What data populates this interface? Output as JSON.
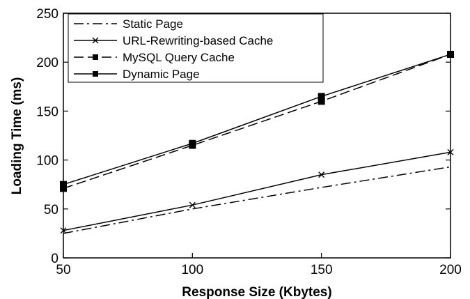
{
  "chart_data": {
    "type": "line",
    "title": "",
    "xlabel": "Response Size (Kbytes)",
    "ylabel": "Loading Time (ms)",
    "x": [
      50,
      100,
      150,
      200
    ],
    "xticks": [
      "50",
      "100",
      "150",
      "200"
    ],
    "yticks": [
      "0",
      "50",
      "100",
      "150",
      "200",
      "250"
    ],
    "xlim": [
      50,
      200
    ],
    "ylim": [
      0,
      250
    ],
    "grid": false,
    "legend_position": "top-left",
    "series": [
      {
        "name": "Static Page",
        "values": [
          25,
          50,
          72,
          93
        ],
        "style": "dash-dot",
        "marker": "none",
        "color": "#000000"
      },
      {
        "name": "URL-Rewriting-based Cache",
        "values": [
          28,
          54,
          85,
          108
        ],
        "style": "solid",
        "marker": "x",
        "color": "#000000"
      },
      {
        "name": "MySQL Query Cache",
        "values": [
          71,
          115,
          160,
          208
        ],
        "style": "dashed",
        "marker": "square",
        "color": "#000000"
      },
      {
        "name": "Dynamic Page",
        "values": [
          75,
          117,
          165,
          208
        ],
        "style": "solid",
        "marker": "square",
        "color": "#000000"
      }
    ]
  }
}
